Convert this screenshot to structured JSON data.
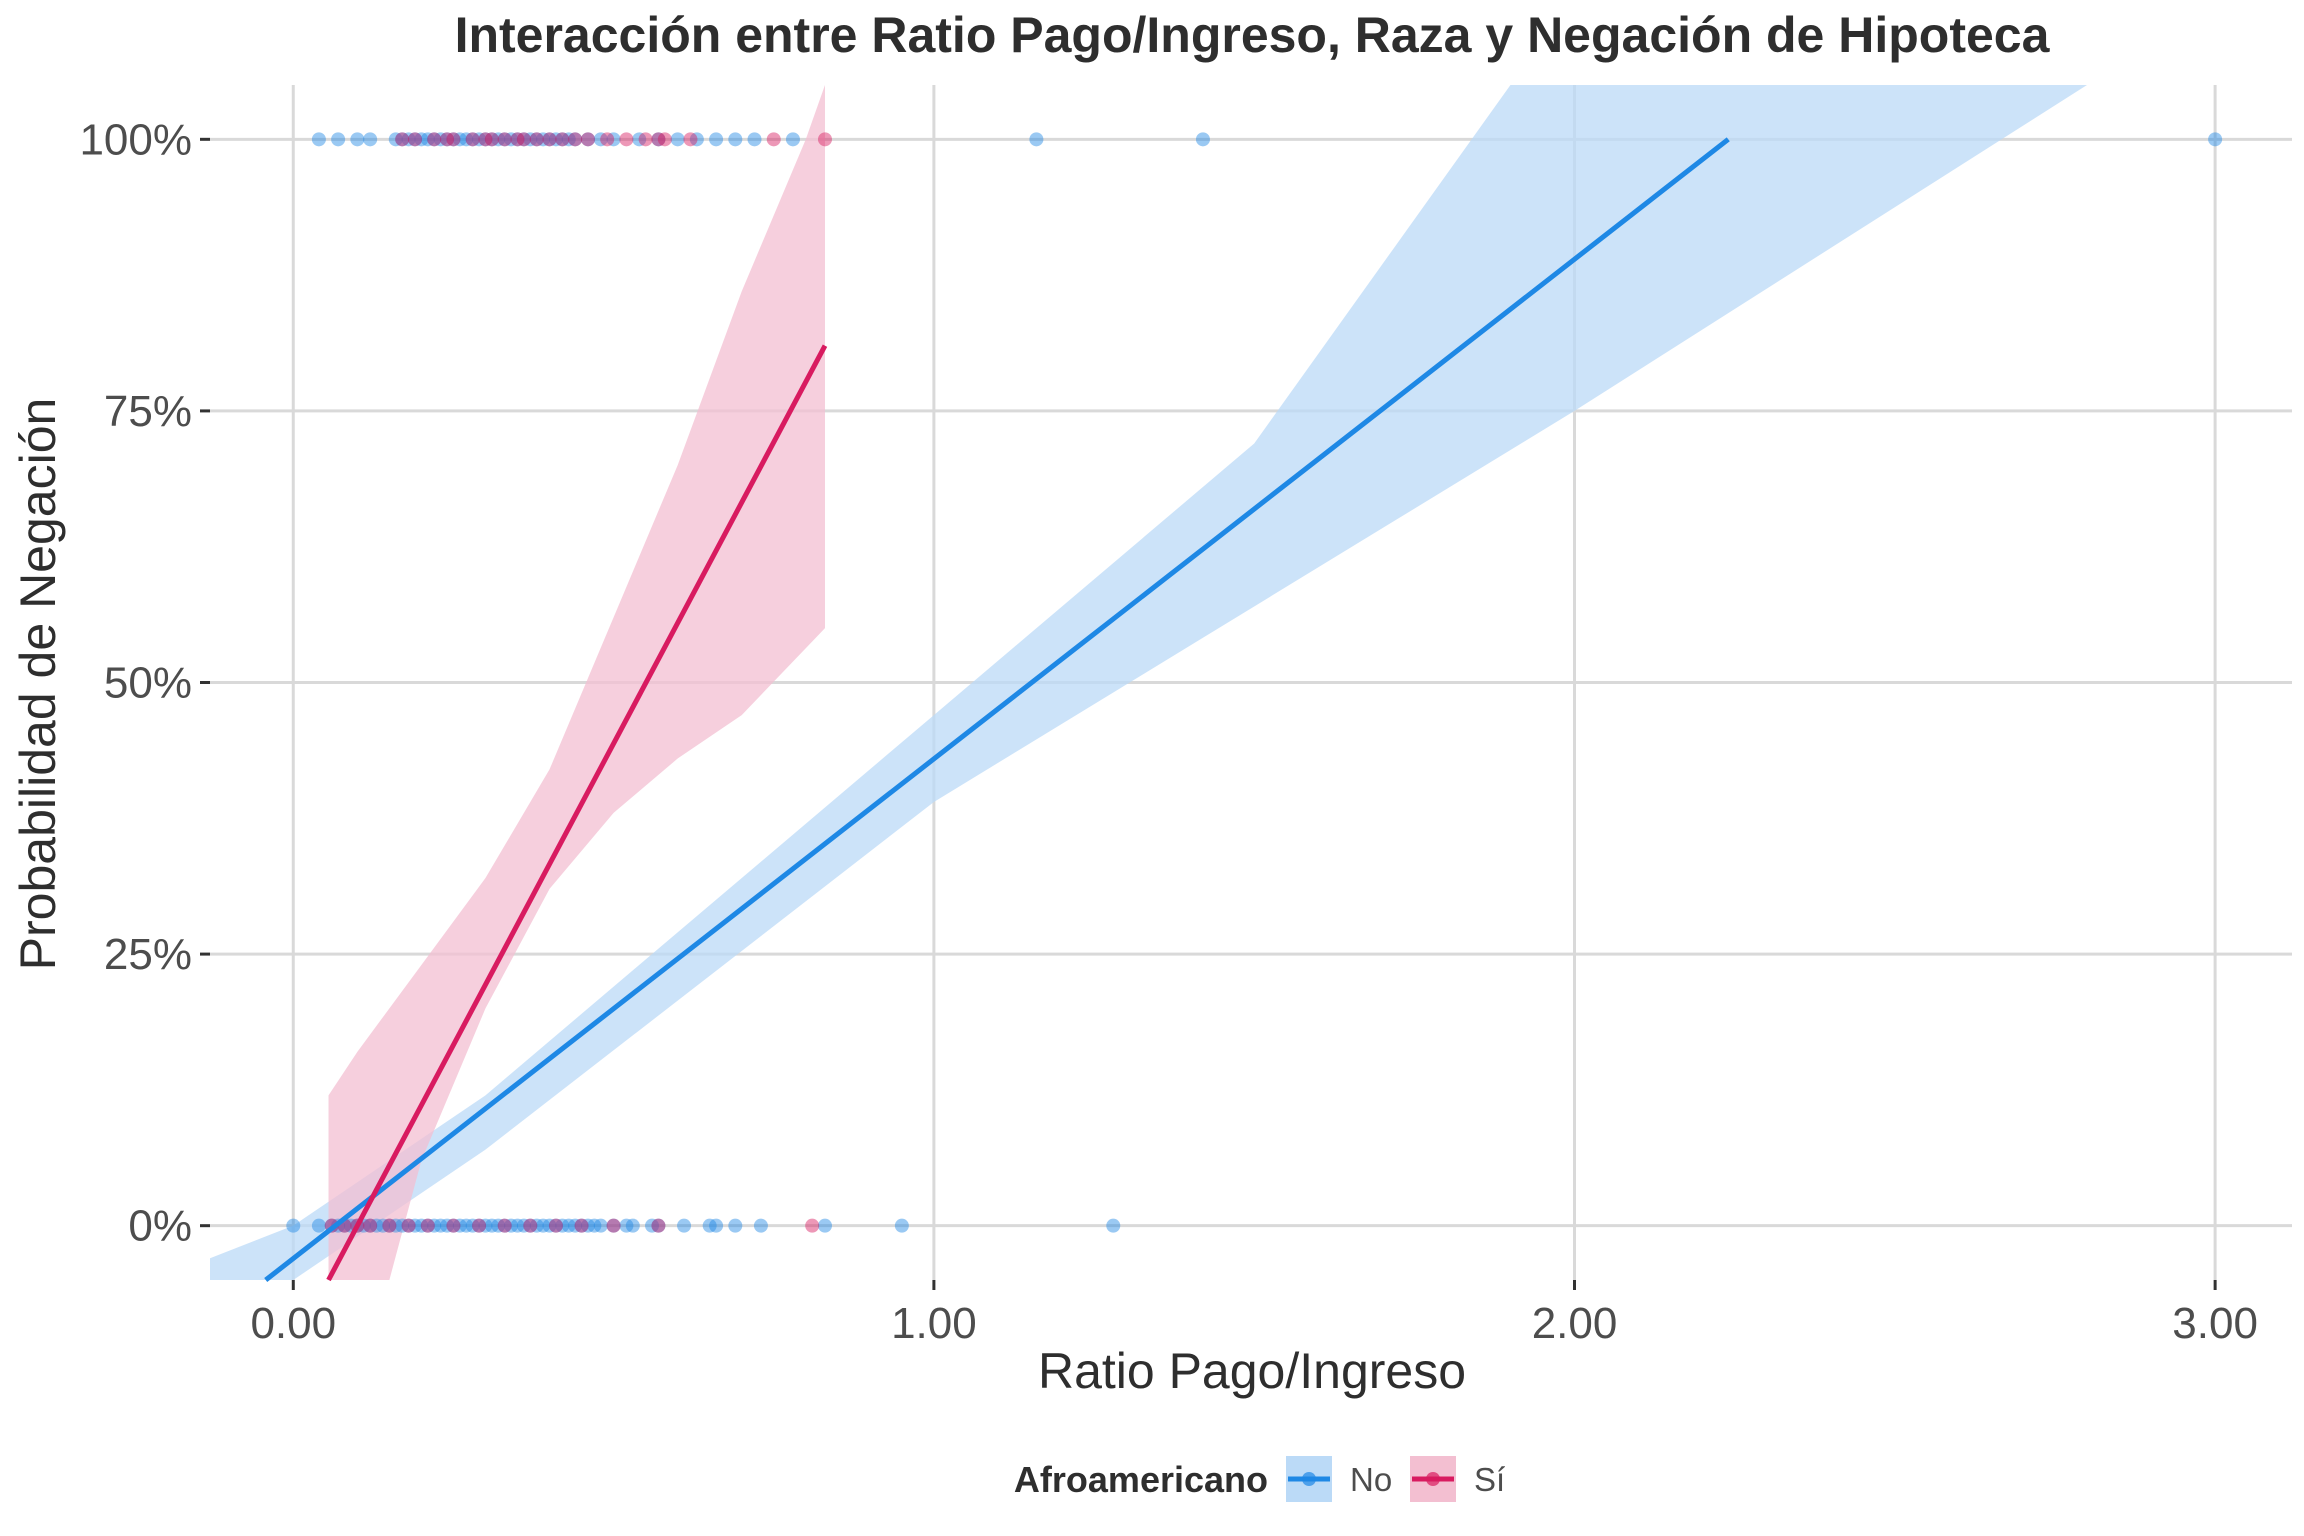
{
  "colors": {
    "background": "#ffffff",
    "grid": "#d9d9d9",
    "no": "#1e88e5",
    "si": "#d81b60",
    "no_band": "#bbdaf7",
    "si_band": "#f3bfd1"
  },
  "chart_data": {
    "type": "scatter",
    "title": "Interacción entre Ratio Pago/Ingreso, Raza y Negación de Hipoteca",
    "xlabel": "Ratio Pago/Ingreso",
    "ylabel": "Probabilidad de Negación",
    "xlim": [
      -0.13,
      3.12
    ],
    "ylim": [
      -0.05,
      1.05
    ],
    "x_ticks": [
      0,
      1,
      2,
      3
    ],
    "x_tick_labels": [
      "0.00",
      "1.00",
      "2.00",
      "3.00"
    ],
    "y_ticks": [
      0,
      0.25,
      0.5,
      0.75,
      1
    ],
    "y_tick_labels": [
      "0%",
      "25%",
      "50%",
      "75%",
      "100%"
    ],
    "grid": true,
    "legend": {
      "title": "Afroamericano",
      "position": "bottom",
      "entries": [
        "No",
        "Sí"
      ]
    },
    "series": [
      {
        "name": "No",
        "color": "#1e88e5",
        "points_denied": [
          0.04,
          0.07,
          0.1,
          0.12,
          0.16,
          0.17,
          0.18,
          0.19,
          0.2,
          0.21,
          0.22,
          0.23,
          0.24,
          0.25,
          0.26,
          0.27,
          0.28,
          0.29,
          0.3,
          0.31,
          0.32,
          0.33,
          0.34,
          0.35,
          0.36,
          0.37,
          0.38,
          0.39,
          0.4,
          0.41,
          0.42,
          0.43,
          0.44,
          0.46,
          0.48,
          0.5,
          0.54,
          0.57,
          0.6,
          0.63,
          0.66,
          0.69,
          0.72,
          0.78,
          1.16,
          1.42,
          3.0
        ],
        "points_approved": [
          0.0,
          0.04,
          0.06,
          0.07,
          0.08,
          0.09,
          0.1,
          0.11,
          0.12,
          0.13,
          0.14,
          0.15,
          0.16,
          0.17,
          0.18,
          0.19,
          0.2,
          0.21,
          0.22,
          0.23,
          0.24,
          0.25,
          0.26,
          0.27,
          0.28,
          0.29,
          0.3,
          0.31,
          0.32,
          0.33,
          0.34,
          0.35,
          0.36,
          0.37,
          0.38,
          0.39,
          0.4,
          0.41,
          0.42,
          0.43,
          0.44,
          0.45,
          0.46,
          0.47,
          0.48,
          0.5,
          0.52,
          0.53,
          0.56,
          0.57,
          0.61,
          0.65,
          0.66,
          0.69,
          0.73,
          0.83,
          0.95,
          1.28
        ],
        "fit": {
          "x0": -0.13,
          "y0": -0.09,
          "x1": 2.24,
          "y1": 1.0
        },
        "ci_upper": [
          [
            -0.13,
            -0.03
          ],
          [
            0.0,
            0.0
          ],
          [
            0.3,
            0.12
          ],
          [
            1.0,
            0.47
          ],
          [
            1.5,
            0.72
          ],
          [
            1.9,
            1.05
          ]
        ],
        "ci_lower": [
          [
            -0.13,
            -0.05
          ],
          [
            0.0,
            -0.05
          ],
          [
            0.3,
            0.07
          ],
          [
            1.0,
            0.39
          ],
          [
            2.0,
            0.75
          ],
          [
            2.8,
            1.05
          ]
        ]
      },
      {
        "name": "Sí",
        "color": "#d81b60",
        "points_denied": [
          0.17,
          0.19,
          0.22,
          0.24,
          0.25,
          0.28,
          0.3,
          0.31,
          0.33,
          0.35,
          0.36,
          0.38,
          0.4,
          0.42,
          0.44,
          0.46,
          0.49,
          0.52,
          0.55,
          0.57,
          0.58,
          0.62,
          0.75,
          0.83
        ],
        "points_approved": [
          0.06,
          0.08,
          0.1,
          0.12,
          0.15,
          0.18,
          0.21,
          0.25,
          0.29,
          0.33,
          0.37,
          0.41,
          0.45,
          0.5,
          0.57,
          0.81
        ],
        "fit": {
          "x0": 0.055,
          "y0": -0.05,
          "x1": 0.83,
          "y1": 0.81
        },
        "ci_upper": [
          [
            0.055,
            0.12
          ],
          [
            0.1,
            0.16
          ],
          [
            0.2,
            0.24
          ],
          [
            0.3,
            0.32
          ],
          [
            0.4,
            0.42
          ],
          [
            0.5,
            0.56
          ],
          [
            0.6,
            0.7
          ],
          [
            0.7,
            0.86
          ],
          [
            0.8,
            1.0
          ],
          [
            0.83,
            1.05
          ]
        ],
        "ci_lower": [
          [
            0.055,
            -0.05
          ],
          [
            0.15,
            -0.05
          ],
          [
            0.2,
            0.06
          ],
          [
            0.3,
            0.2
          ],
          [
            0.4,
            0.31
          ],
          [
            0.5,
            0.38
          ],
          [
            0.6,
            0.43
          ],
          [
            0.7,
            0.47
          ],
          [
            0.83,
            0.55
          ]
        ]
      }
    ]
  }
}
